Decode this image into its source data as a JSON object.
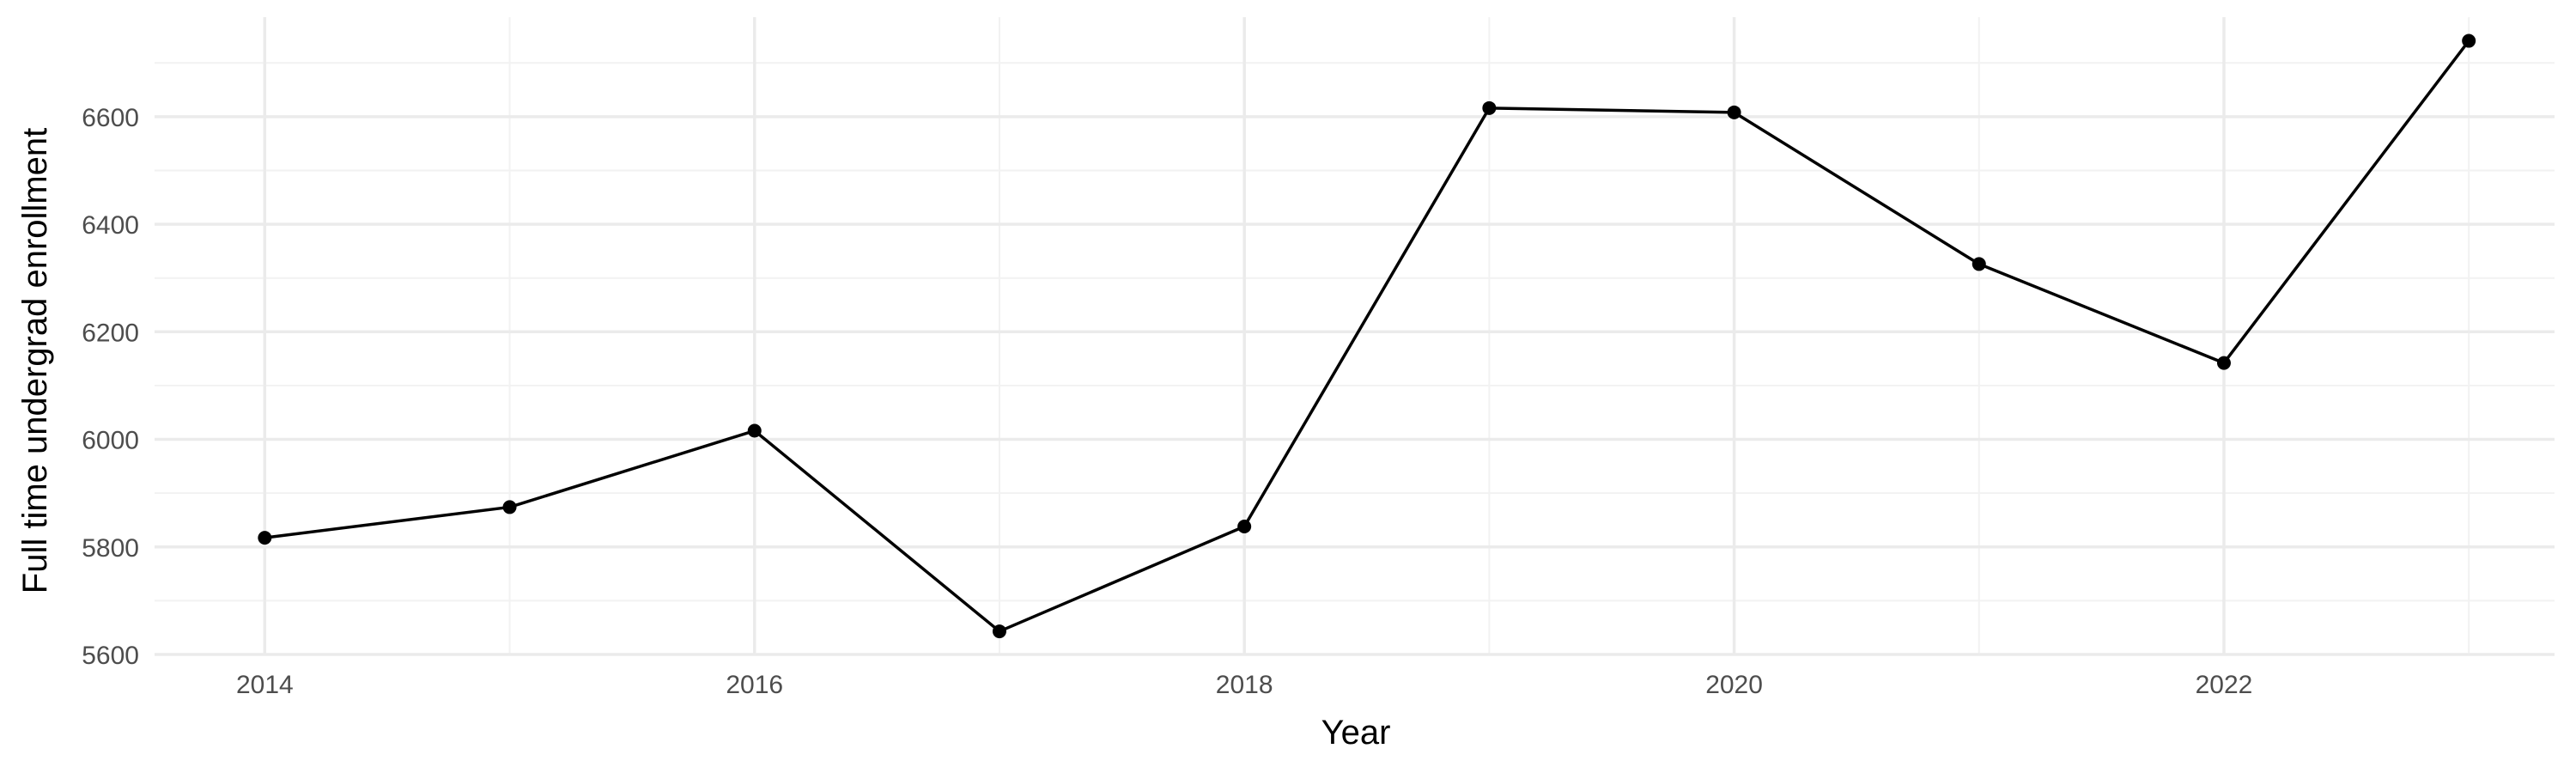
{
  "chart_data": {
    "type": "line",
    "xlabel": "Year",
    "ylabel": "Full time undergrad enrollment",
    "xlim": [
      2013.55,
      2023.35
    ],
    "ylim": [
      5600,
      6785
    ],
    "x_ticks": [
      2014,
      2016,
      2018,
      2020,
      2022
    ],
    "x_minor_ticks": [
      2015,
      2017,
      2019,
      2021,
      2023
    ],
    "y_ticks": [
      5600,
      5800,
      6000,
      6200,
      6400,
      6600
    ],
    "y_minor_ticks": [
      5700,
      5900,
      6100,
      6300,
      6500,
      6700
    ],
    "grid": true,
    "series": [
      {
        "x": [
          2014,
          2015,
          2016,
          2017,
          2018,
          2019,
          2020,
          2021,
          2022,
          2023
        ],
        "values": [
          5817,
          5874,
          6016,
          5643,
          5838,
          6616,
          6608,
          6326,
          6142,
          6741
        ]
      }
    ],
    "colors": {
      "line": "#000000",
      "grid_major": "#ebebeb",
      "grid_minor": "#f2f2f2",
      "tick_text": "#4d4d4d"
    }
  }
}
